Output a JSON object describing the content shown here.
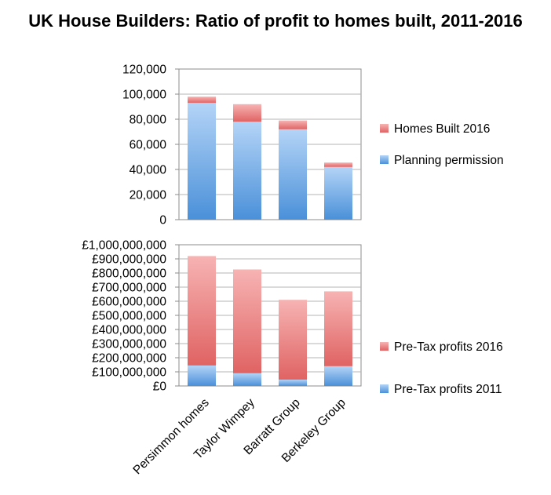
{
  "title": "UK House Builders: Ratio of profit to homes built, 2011-2016",
  "colors": {
    "blue_light": "#b4d4f7",
    "blue_dark": "#4a90d9",
    "red_light": "#f7b3b3",
    "red_dark": "#e06363",
    "grid": "#b5b5b5",
    "axis": "#8c8c8c"
  },
  "chart_data": [
    {
      "type": "bar",
      "stacked": true,
      "categories": [
        "Persimmon homes",
        "Taylor Wimpey",
        "Barratt Group",
        "Berkeley Group"
      ],
      "series": [
        {
          "name": "Planning permission",
          "values": [
            93000,
            78000,
            72000,
            42000
          ],
          "color": "blue"
        },
        {
          "name": "Homes Built 2016",
          "values": [
            5000,
            14000,
            7000,
            3500
          ],
          "color": "red"
        }
      ],
      "ylim": [
        0,
        120000
      ],
      "yticks": [
        "0",
        "20,000",
        "40,000",
        "60,000",
        "80,000",
        "100,000",
        "120,000"
      ],
      "legend": [
        "Homes Built 2016",
        "Planning permission"
      ],
      "legend_position": "right"
    },
    {
      "type": "bar",
      "stacked": true,
      "categories": [
        "Persimmon homes",
        "Taylor Wimpey",
        "Barratt Group",
        "Berkeley Group"
      ],
      "series": [
        {
          "name": "Pre-Tax profits 2011",
          "values": [
            145000000,
            90000000,
            45000000,
            140000000
          ],
          "color": "blue"
        },
        {
          "name": "Pre-Tax profits 2016",
          "values": [
            775000000,
            735000000,
            565000000,
            530000000
          ],
          "color": "red"
        }
      ],
      "ylim": [
        0,
        1000000000
      ],
      "yticks": [
        "£0",
        "£100,000,000",
        "£200,000,000",
        "£300,000,000",
        "£400,000,000",
        "£500,000,000",
        "£600,000,000",
        "£700,000,000",
        "£800,000,000",
        "£900,000,000",
        "£1,000,000,000"
      ],
      "legend": [
        "Pre-Tax profits 2016",
        "Pre-Tax profits 2011"
      ],
      "legend_position": "right"
    }
  ]
}
